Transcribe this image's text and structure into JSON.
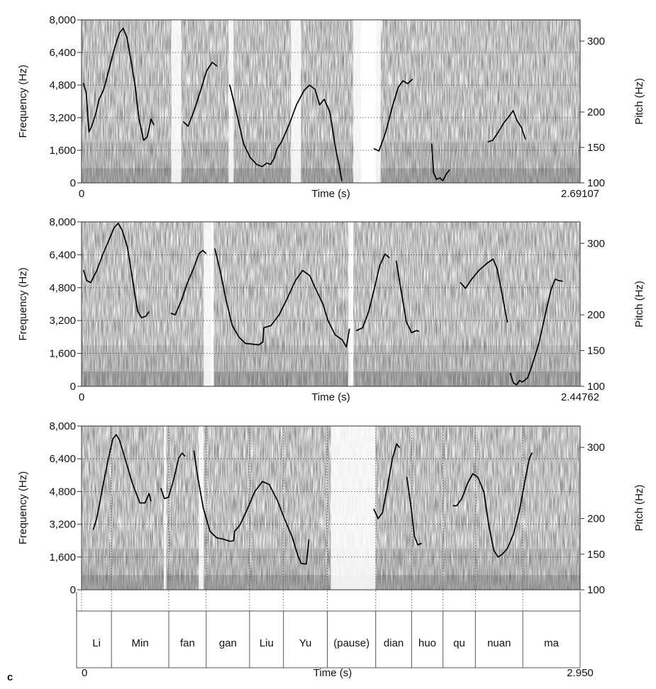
{
  "panel_label": "c",
  "chart_data": [
    {
      "type": "line",
      "panel": "spectrogram-1",
      "xlabel": "Time (s)",
      "ylabel": "Frequency (Hz)",
      "y2label": "Pitch (Hz)",
      "x_start_label": "0",
      "x_end_label": "2.69107",
      "xlim": [
        0,
        2.69107
      ],
      "ylim": [
        0,
        8000
      ],
      "y2lim": [
        100,
        330
      ],
      "yticks": [
        "0",
        "1,600",
        "3,200",
        "4,800",
        "6,400",
        "8,000"
      ],
      "y2ticks": [
        "100",
        "150",
        "200",
        "300"
      ],
      "grid": true,
      "series": [
        {
          "values": [
            [
              [
                0.01,
                240
              ],
              [
                0.025,
                228
              ],
              [
                0.04,
                172
              ],
              [
                0.055,
                180
              ],
              [
                0.075,
                196
              ],
              [
                0.095,
                218
              ],
              [
                0.12,
                232
              ],
              [
                0.15,
                262
              ],
              [
                0.18,
                292
              ],
              [
                0.205,
                312
              ],
              [
                0.225,
                318
              ],
              [
                0.245,
                305
              ],
              [
                0.27,
                268
              ],
              [
                0.29,
                235
              ],
              [
                0.31,
                190
              ],
              [
                0.335,
                160
              ],
              [
                0.355,
                165
              ],
              [
                0.375,
                190
              ],
              [
                0.39,
                182
              ]
            ],
            [
              [
                0.55,
                186
              ],
              [
                0.575,
                180
              ],
              [
                0.605,
                200
              ],
              [
                0.64,
                228
              ],
              [
                0.675,
                258
              ],
              [
                0.705,
                270
              ],
              [
                0.73,
                265
              ]
            ],
            [
              [
                0.8,
                238
              ],
              [
                0.84,
                195
              ],
              [
                0.875,
                155
              ],
              [
                0.91,
                136
              ],
              [
                0.945,
                126
              ],
              [
                0.975,
                123
              ],
              [
                1.0,
                128
              ],
              [
                1.02,
                126
              ],
              [
                1.04,
                135
              ],
              [
                1.055,
                148
              ],
              [
                1.08,
                158
              ],
              [
                1.12,
                182
              ],
              [
                1.16,
                210
              ],
              [
                1.2,
                230
              ],
              [
                1.23,
                238
              ],
              [
                1.26,
                232
              ],
              [
                1.285,
                210
              ],
              [
                1.31,
                218
              ],
              [
                1.34,
                200
              ],
              [
                1.37,
                150
              ],
              [
                1.39,
                125
              ],
              [
                1.405,
                103
              ]
            ],
            [
              [
                1.58,
                148
              ],
              [
                1.605,
                145
              ],
              [
                1.64,
                170
              ],
              [
                1.68,
                210
              ],
              [
                1.71,
                235
              ],
              [
                1.735,
                244
              ],
              [
                1.76,
                240
              ],
              [
                1.785,
                246
              ]
            ],
            [
              [
                1.89,
                155
              ],
              [
                1.9,
                115
              ],
              [
                1.915,
                105
              ],
              [
                1.935,
                107
              ],
              [
                1.95,
                103
              ],
              [
                1.97,
                113
              ],
              [
                1.985,
                118
              ]
            ],
            [
              [
                2.195,
                158
              ],
              [
                2.22,
                160
              ],
              [
                2.25,
                172
              ],
              [
                2.28,
                185
              ],
              [
                2.305,
                193
              ],
              [
                2.33,
                202
              ],
              [
                2.35,
                188
              ],
              [
                2.375,
                178
              ],
              [
                2.395,
                162
              ]
            ]
          ]
        }
      ]
    },
    {
      "type": "line",
      "panel": "spectrogram-2",
      "xlabel": "Time (s)",
      "ylabel": "Frequency (Hz)",
      "y2label": "Pitch (Hz)",
      "x_start_label": "0",
      "x_end_label": "2.44762",
      "xlim": [
        0,
        2.44762
      ],
      "ylim": [
        0,
        8000
      ],
      "y2lim": [
        100,
        330
      ],
      "yticks": [
        "0",
        "1,600",
        "3,200",
        "4,800",
        "6,400",
        "8,000"
      ],
      "y2ticks": [
        "100",
        "150",
        "200",
        "300"
      ],
      "grid": true,
      "series": [
        {
          "values": [
            [
              [
                0.01,
                262
              ],
              [
                0.025,
                248
              ],
              [
                0.045,
                245
              ],
              [
                0.075,
                262
              ],
              [
                0.105,
                285
              ],
              [
                0.135,
                305
              ],
              [
                0.16,
                322
              ],
              [
                0.18,
                328
              ],
              [
                0.2,
                318
              ],
              [
                0.225,
                295
              ],
              [
                0.25,
                250
              ],
              [
                0.275,
                205
              ],
              [
                0.295,
                196
              ],
              [
                0.315,
                198
              ],
              [
                0.33,
                204
              ]
            ],
            [
              [
                0.44,
                202
              ],
              [
                0.46,
                200
              ],
              [
                0.49,
                220
              ],
              [
                0.52,
                245
              ],
              [
                0.55,
                265
              ],
              [
                0.575,
                285
              ],
              [
                0.595,
                290
              ],
              [
                0.61,
                286
              ]
            ],
            [
              [
                0.655,
                292
              ],
              [
                0.68,
                262
              ],
              [
                0.71,
                220
              ],
              [
                0.74,
                185
              ],
              [
                0.775,
                168
              ],
              [
                0.805,
                160
              ],
              [
                0.84,
                159
              ],
              [
                0.87,
                158
              ],
              [
                0.89,
                162
              ],
              [
                0.895,
                182
              ],
              [
                0.93,
                185
              ],
              [
                0.97,
                200
              ],
              [
                1.01,
                223
              ],
              [
                1.05,
                248
              ],
              [
                1.085,
                262
              ],
              [
                1.12,
                255
              ],
              [
                1.155,
                233
              ],
              [
                1.185,
                215
              ],
              [
                1.21,
                192
              ],
              [
                1.245,
                172
              ],
              [
                1.28,
                165
              ],
              [
                1.3,
                155
              ],
              [
                1.315,
                180
              ]
            ],
            [
              [
                1.35,
                178
              ],
              [
                1.38,
                182
              ],
              [
                1.41,
                205
              ],
              [
                1.44,
                240
              ],
              [
                1.465,
                270
              ],
              [
                1.49,
                285
              ],
              [
                1.51,
                280
              ]
            ],
            [
              [
                1.545,
                275
              ],
              [
                1.57,
                232
              ],
              [
                1.595,
                190
              ],
              [
                1.62,
                175
              ],
              [
                1.645,
                178
              ],
              [
                1.655,
                177
              ]
            ],
            [
              [
                1.86,
                245
              ],
              [
                1.885,
                237
              ],
              [
                1.91,
                248
              ],
              [
                1.95,
                262
              ],
              [
                1.99,
                272
              ],
              [
                2.02,
                278
              ],
              [
                2.04,
                265
              ],
              [
                2.065,
                228
              ],
              [
                2.09,
                190
              ]
            ],
            [
              [
                2.105,
                118
              ],
              [
                2.12,
                105
              ],
              [
                2.135,
                102
              ],
              [
                2.15,
                108
              ],
              [
                2.165,
                106
              ],
              [
                2.19,
                112
              ],
              [
                2.21,
                128
              ],
              [
                2.245,
                160
              ],
              [
                2.28,
                205
              ],
              [
                2.305,
                235
              ],
              [
                2.325,
                250
              ],
              [
                2.34,
                248
              ],
              [
                2.36,
                247
              ]
            ]
          ]
        }
      ]
    },
    {
      "type": "line",
      "panel": "spectrogram-3",
      "xlabel": "Time (s)",
      "ylabel": "Frequency (Hz)",
      "y2label": "Pitch (Hz)",
      "x_start_label": "0",
      "x_end_label": "2.950",
      "xlim": [
        0,
        2.95
      ],
      "ylim": [
        0,
        8000
      ],
      "y2lim": [
        100,
        330
      ],
      "yticks": [
        "0",
        "1,600",
        "3,200",
        "4,800",
        "6,400",
        "8,000"
      ],
      "y2ticks": [
        "100",
        "150",
        "200",
        "300"
      ],
      "grid": true,
      "series": [
        {
          "values": [
            [
              [
                0.07,
                185
              ],
              [
                0.09,
                200
              ],
              [
                0.12,
                238
              ],
              [
                0.155,
                280
              ],
              [
                0.185,
                312
              ],
              [
                0.205,
                318
              ],
              [
                0.225,
                310
              ],
              [
                0.26,
                282
              ],
              [
                0.3,
                250
              ],
              [
                0.345,
                222
              ],
              [
                0.375,
                222
              ],
              [
                0.4,
                235
              ],
              [
                0.41,
                225
              ]
            ],
            [
              [
                0.47,
                242
              ],
              [
                0.49,
                228
              ],
              [
                0.515,
                230
              ],
              [
                0.545,
                255
              ],
              [
                0.575,
                285
              ],
              [
                0.595,
                292
              ],
              [
                0.61,
                288
              ]
            ],
            [
              [
                0.665,
                295
              ],
              [
                0.685,
                262
              ],
              [
                0.72,
                215
              ],
              [
                0.76,
                182
              ],
              [
                0.8,
                173
              ],
              [
                0.84,
                171
              ],
              [
                0.88,
                168
              ],
              [
                0.9,
                169
              ],
              [
                0.905,
                182
              ],
              [
                0.935,
                190
              ],
              [
                0.975,
                210
              ],
              [
                1.025,
                238
              ],
              [
                1.07,
                252
              ],
              [
                1.11,
                248
              ],
              [
                1.16,
                225
              ],
              [
                1.2,
                200
              ],
              [
                1.245,
                175
              ],
              [
                1.28,
                148
              ],
              [
                1.3,
                137
              ],
              [
                1.33,
                136
              ],
              [
                1.345,
                170
              ]
            ],
            [
              [
                1.73,
                213
              ],
              [
                1.755,
                200
              ],
              [
                1.78,
                208
              ],
              [
                1.81,
                245
              ],
              [
                1.84,
                285
              ],
              [
                1.865,
                305
              ],
              [
                1.88,
                300
              ]
            ],
            [
              [
                1.925,
                258
              ],
              [
                1.95,
                215
              ],
              [
                1.97,
                175
              ],
              [
                1.99,
                163
              ],
              [
                2.01,
                165
              ]
            ],
            [
              [
                2.2,
                218
              ],
              [
                2.22,
                218
              ],
              [
                2.25,
                228
              ],
              [
                2.285,
                250
              ],
              [
                2.315,
                263
              ],
              [
                2.345,
                258
              ],
              [
                2.38,
                238
              ],
              [
                2.41,
                190
              ],
              [
                2.44,
                155
              ],
              [
                2.465,
                146
              ],
              [
                2.49,
                150
              ],
              [
                2.52,
                158
              ],
              [
                2.555,
                178
              ],
              [
                2.59,
                210
              ],
              [
                2.625,
                255
              ],
              [
                2.65,
                285
              ],
              [
                2.665,
                292
              ]
            ]
          ]
        }
      ]
    }
  ],
  "segmentation": {
    "syllables": [
      "Li",
      "Min",
      "fan",
      "gan",
      "Liu",
      "Yu",
      "(pause)",
      "dian",
      "huo",
      "qu",
      "nuan",
      "ma"
    ],
    "xlabel": "Time (s)",
    "x_start_label": "0",
    "x_end_label": "2.950"
  }
}
